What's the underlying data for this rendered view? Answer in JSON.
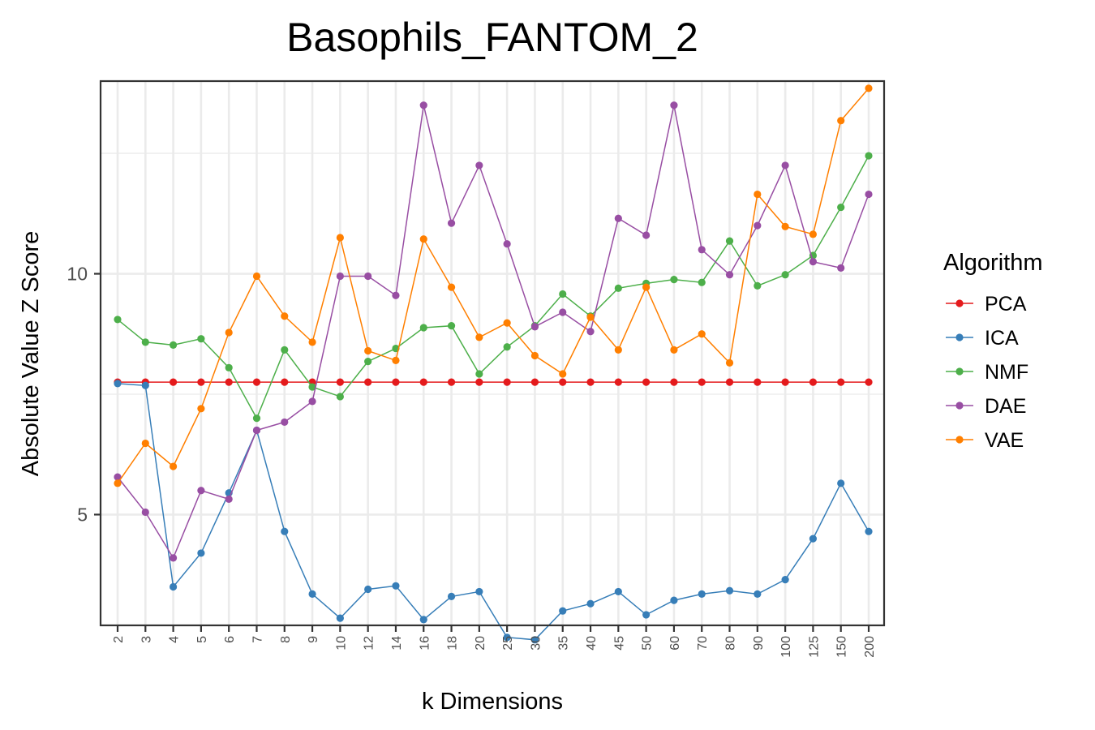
{
  "chart_data": {
    "type": "line",
    "title": "Basophils_FANTOM_2",
    "xlabel": "k Dimensions",
    "ylabel": "Absolute Value Z Score",
    "categories": [
      "2",
      "3",
      "4",
      "5",
      "6",
      "7",
      "8",
      "9",
      "10",
      "12",
      "14",
      "16",
      "18",
      "20",
      "25",
      "30",
      "35",
      "40",
      "45",
      "50",
      "60",
      "70",
      "80",
      "90",
      "100",
      "125",
      "150",
      "200"
    ],
    "ylim": [
      2.7,
      14.0
    ],
    "yticks": [
      5,
      10
    ],
    "grid": true,
    "legend": {
      "title": "Algorithm",
      "position": "right"
    },
    "series": [
      {
        "name": "PCA",
        "color": "#e41a1c",
        "values": [
          7.75,
          7.75,
          7.75,
          7.75,
          7.75,
          7.75,
          7.75,
          7.75,
          7.75,
          7.75,
          7.75,
          7.75,
          7.75,
          7.75,
          7.75,
          7.75,
          7.75,
          7.75,
          7.75,
          7.75,
          7.75,
          7.75,
          7.75,
          7.75,
          7.75,
          7.75,
          7.75,
          7.75
        ]
      },
      {
        "name": "ICA",
        "color": "#377eb8",
        "values": [
          7.72,
          7.68,
          3.5,
          4.2,
          5.45,
          6.75,
          4.65,
          3.35,
          2.85,
          3.45,
          3.52,
          2.82,
          3.3,
          3.4,
          2.45,
          2.4,
          3.0,
          3.15,
          3.4,
          2.92,
          3.22,
          3.35,
          3.42,
          3.35,
          3.65,
          4.5,
          5.65,
          4.65
        ]
      },
      {
        "name": "NMF",
        "color": "#4daf4a",
        "values": [
          9.05,
          8.58,
          8.52,
          8.65,
          8.05,
          7.0,
          8.42,
          7.65,
          7.45,
          8.18,
          8.45,
          8.88,
          8.92,
          7.92,
          8.48,
          8.92,
          9.58,
          9.12,
          9.7,
          9.8,
          9.88,
          9.82,
          10.68,
          9.75,
          9.98,
          10.38,
          11.38,
          12.45
        ]
      },
      {
        "name": "DAE",
        "color": "#984ea3",
        "values": [
          5.78,
          5.05,
          4.1,
          5.5,
          5.32,
          6.75,
          6.92,
          7.35,
          9.95,
          9.95,
          9.55,
          13.5,
          11.05,
          12.25,
          10.62,
          8.9,
          9.2,
          8.8,
          11.15,
          10.8,
          13.5,
          10.5,
          9.98,
          11.0,
          12.25,
          10.25,
          10.12,
          11.65
        ]
      },
      {
        "name": "VAE",
        "color": "#ff7f00",
        "values": [
          5.65,
          6.48,
          6.0,
          7.2,
          8.78,
          9.95,
          9.12,
          8.58,
          10.75,
          8.4,
          8.2,
          10.72,
          9.72,
          8.68,
          8.98,
          8.3,
          7.92,
          9.1,
          8.42,
          9.72,
          8.42,
          8.75,
          8.15,
          11.65,
          10.98,
          10.82,
          13.18,
          13.85
        ]
      }
    ]
  }
}
